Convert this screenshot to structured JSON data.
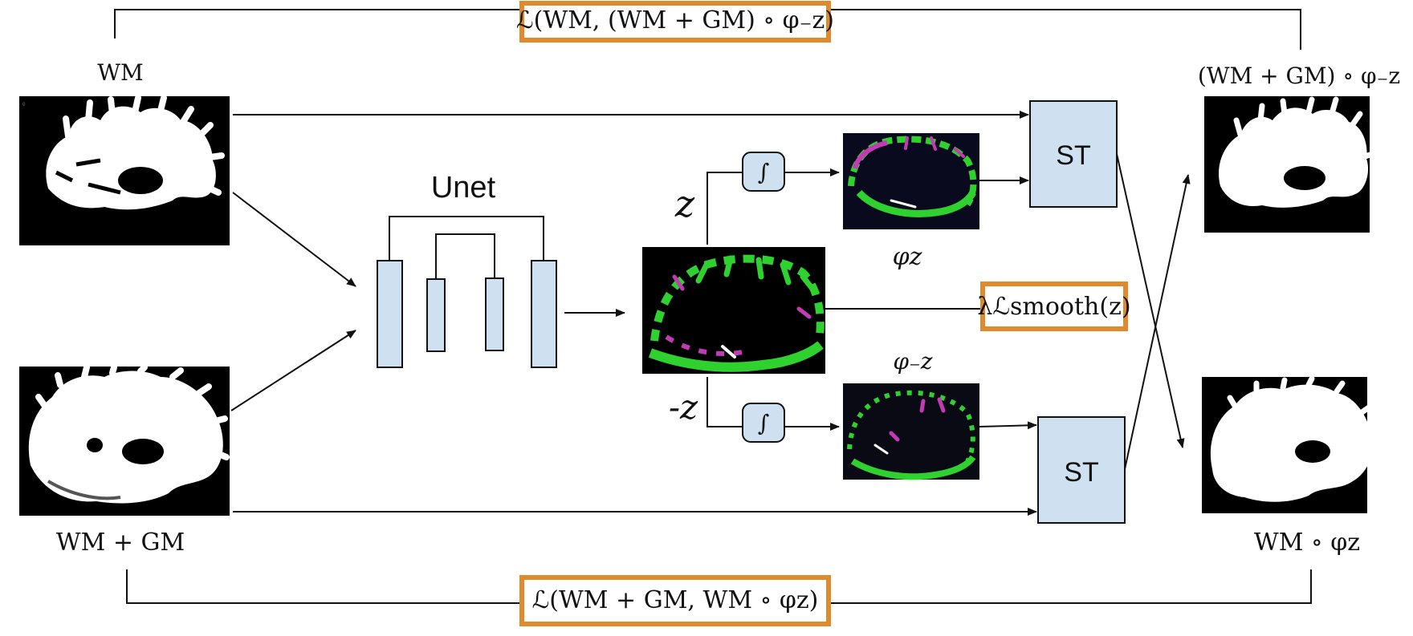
{
  "losses": {
    "top": "ℒ(WM, (WM + GM) ∘ φ₋z)",
    "bottom": "ℒ(WM + GM, WM ∘ φz)",
    "smooth": "λℒsmooth(z)"
  },
  "inputs": {
    "wm": "WM",
    "wm_gm": "WM + GM"
  },
  "outputs": {
    "warped_wm_gm": "(WM + GM) ∘ φ₋z",
    "warped_wm": "WM ∘ φz"
  },
  "network": {
    "name": "Unet"
  },
  "latent": {
    "z": "z",
    "neg_z": "-z"
  },
  "integrators": {
    "symbol": "∫"
  },
  "fields": {
    "phi_z": "φz",
    "phi_neg_z": "φ₋z"
  },
  "transformers": {
    "top": "ST",
    "bottom": "ST"
  },
  "colors": {
    "accent_orange": "#e08a2e",
    "block_fill": "#cfe0f1",
    "field_green": "#2fd12f",
    "field_magenta": "#c23bb5"
  }
}
